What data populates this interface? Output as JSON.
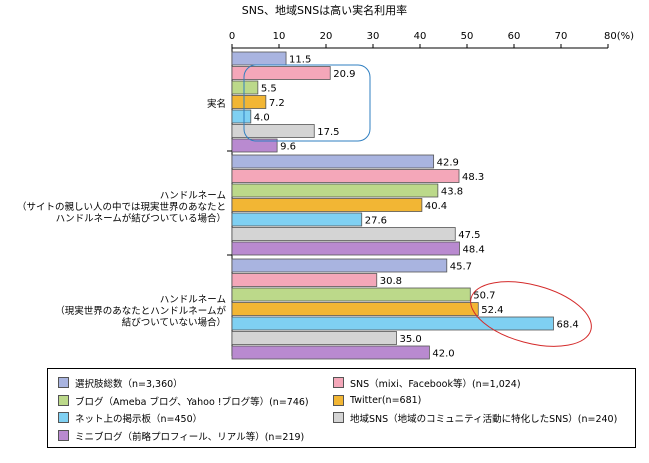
{
  "chart_data": {
    "type": "bar",
    "orientation": "horizontal",
    "title": "SNS、地域SNSは高い実名利用率",
    "x_unit_label": "80(%)",
    "xlim": [
      0,
      80
    ],
    "xticks": [
      "0",
      "10",
      "20",
      "30",
      "40",
      "50",
      "60",
      "70"
    ],
    "grid": false,
    "categories": [
      [
        "実名"
      ],
      [
        "ハンドルネーム",
        "（サイトの親しい人の中では現実世界のあなたと",
        "ハンドルネームが結びついている場合）"
      ],
      [
        "ハンドルネーム",
        "（現実世界のあなたとハンドルネームが",
        "結びついていない場合）"
      ]
    ],
    "series": [
      {
        "name": "選択肢総数（n=3,360）",
        "color": "#a9b4e0",
        "values": [
          11.5,
          42.9,
          45.7
        ]
      },
      {
        "name": "SNS（mixi、Facebook等）(n=1,024)",
        "color": "#f4a7b9",
        "values": [
          20.9,
          48.3,
          30.8
        ]
      },
      {
        "name": "ブログ（Ameba ブログ、Yahoo !ブログ等）(n=746)",
        "color": "#bcd98a",
        "values": [
          5.5,
          43.8,
          50.7
        ]
      },
      {
        "name": "Twitter(n=681)",
        "color": "#f2b634",
        "values": [
          7.2,
          40.4,
          52.4
        ]
      },
      {
        "name": "ネット上の掲示板（n=450）",
        "color": "#7fd0f2",
        "values": [
          4.0,
          27.6,
          68.4
        ]
      },
      {
        "name": "地域SNS（地域のコミュニティ活動に特化したSNS）(n=240)",
        "color": "#d4d4d4",
        "values": [
          17.5,
          47.5,
          35.0
        ]
      },
      {
        "name": "ミニブログ（前略プロフィール、リアル等）(n=219)",
        "color": "#b98ad0",
        "values": [
          9.6,
          48.4,
          42.0
        ]
      }
    ],
    "value_labels": [
      [
        "11.5",
        "20.9",
        "5.5",
        "7.2",
        "4.0",
        "17.5",
        "9.6"
      ],
      [
        "42.9",
        "48.3",
        "43.8",
        "40.4",
        "27.6",
        "47.5",
        "48.4"
      ],
      [
        "45.7",
        "30.8",
        "50.7",
        "52.4",
        "68.4",
        "35.0",
        "42.0"
      ]
    ],
    "legend_position": "bottom"
  }
}
